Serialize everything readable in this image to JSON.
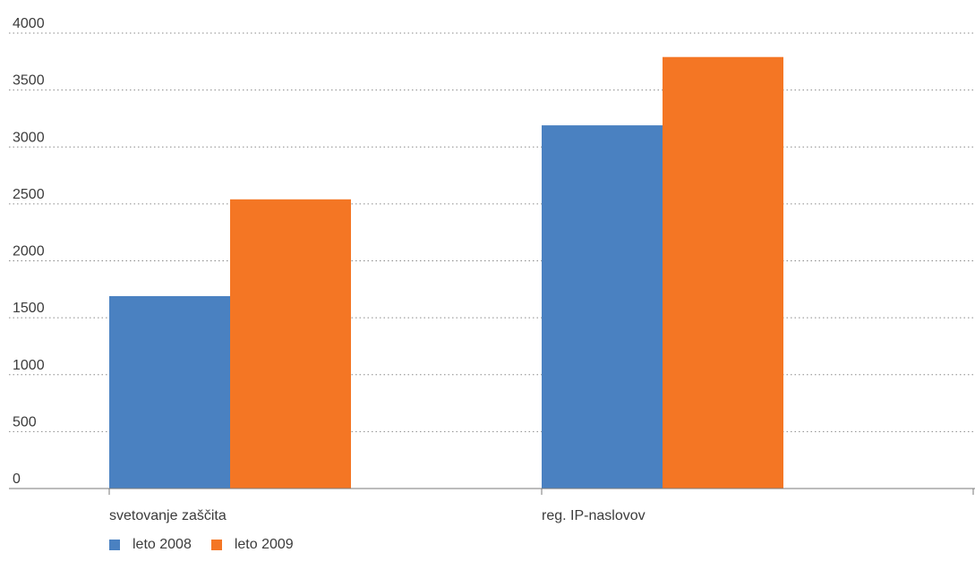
{
  "chart_data": {
    "type": "bar",
    "categories": [
      "svetovanje zaščita",
      "reg. IP-naslovov"
    ],
    "series": [
      {
        "name": "leto 2008",
        "color": "#4a81c1",
        "values": [
          1690,
          3190
        ]
      },
      {
        "name": "leto 2009",
        "color": "#f47624",
        "values": [
          2540,
          3790
        ]
      }
    ],
    "ylim": [
      0,
      4000
    ],
    "yticks": [
      0,
      500,
      1000,
      1500,
      2000,
      2500,
      3000,
      3500,
      4000
    ],
    "grid": true,
    "legend_position": "bottom-left",
    "title": "",
    "xlabel": "",
    "ylabel": ""
  }
}
